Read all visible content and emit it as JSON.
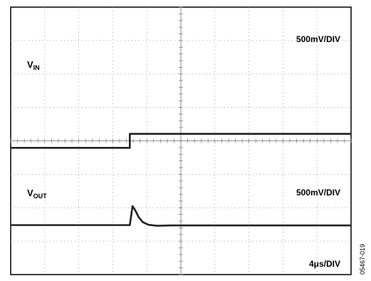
{
  "chart_data": {
    "type": "line",
    "grid": true,
    "x_divisions": 10,
    "y_divisions": 8,
    "x_scale": "4μs/DIV",
    "x_range_div": [
      0,
      10
    ],
    "y_range_div": [
      0,
      8
    ],
    "series": [
      {
        "name": "V_IN",
        "scale": "500mV/DIV",
        "x_div": [
          0,
          3.5,
          3.5,
          10
        ],
        "y_div": [
          3.79,
          3.79,
          4.21,
          4.21
        ]
      },
      {
        "name": "V_OUT",
        "scale": "500mV/DIV",
        "x_div": [
          0,
          3.5,
          3.58,
          3.66,
          3.76,
          3.88,
          4.05,
          4.3,
          4.7,
          10
        ],
        "y_div": [
          1.48,
          1.48,
          2.05,
          1.92,
          1.72,
          1.57,
          1.49,
          1.46,
          1.47,
          1.47
        ]
      }
    ]
  },
  "labels": {
    "vin_main": "V",
    "vin_sub": "IN",
    "vout_main": "V",
    "vout_sub": "OUT",
    "vin_scale": "500mV/DIV",
    "vout_scale": "500mV/DIV",
    "time_scale": "4μs/DIV",
    "figure_code": "05467-019"
  }
}
